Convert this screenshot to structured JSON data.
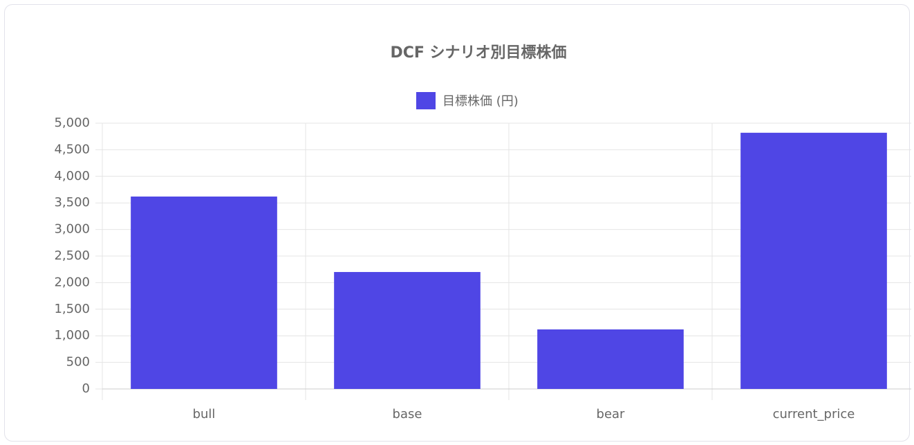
{
  "chart_data": {
    "type": "bar",
    "title": "DCF シナリオ別目標株価",
    "categories": [
      "bull",
      "base",
      "bear",
      "current_price"
    ],
    "series": [
      {
        "name": "目標株価 (円)",
        "color": "#4f46e5",
        "values": [
          3620,
          2200,
          1120,
          4820
        ]
      }
    ],
    "ylim": [
      0,
      5000
    ],
    "yticks": [
      0,
      500,
      {
        "value": 1000,
        "label": "1,000"
      },
      {
        "value": 1500,
        "label": "1,500"
      },
      {
        "value": 2000,
        "label": "2,000"
      },
      {
        "value": 2500,
        "label": "2,500"
      },
      {
        "value": 3000,
        "label": "3,000"
      },
      {
        "value": 3500,
        "label": "3,500"
      },
      {
        "value": 4000,
        "label": "4,000"
      },
      {
        "value": 4500,
        "label": "4,500"
      },
      {
        "value": 5000,
        "label": "5,000"
      }
    ],
    "grid": true,
    "legend": "top"
  }
}
